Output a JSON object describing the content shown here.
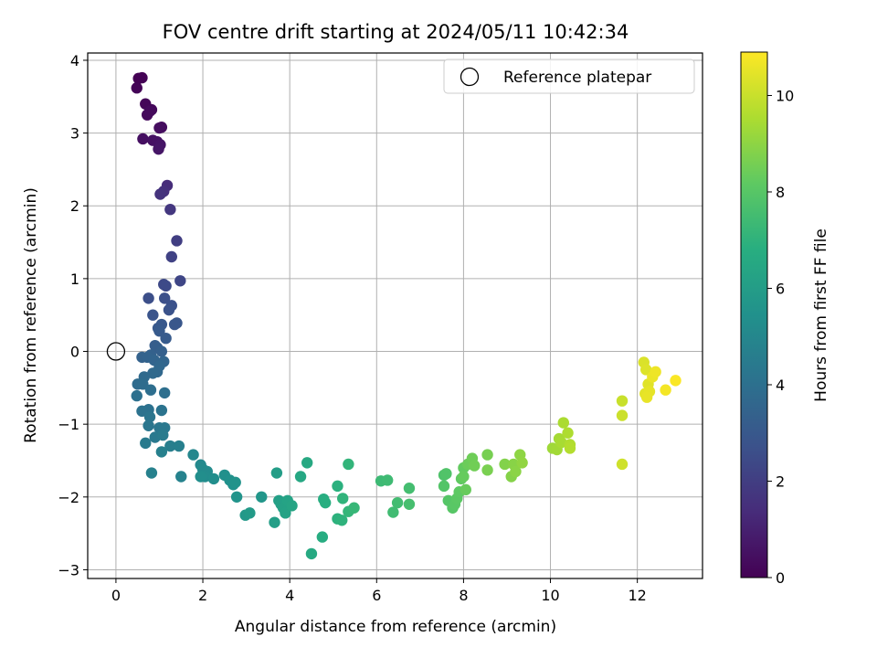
{
  "chart_data": {
    "type": "scatter",
    "title": "FOV centre drift starting at 2024/05/11 10:42:34",
    "xlabel": "Angular distance from reference (arcmin)",
    "ylabel": "Rotation from reference (arcmin)",
    "colorbar_label": "Hours from first FF file",
    "xlim": [
      -0.65,
      13.5
    ],
    "ylim": [
      -3.12,
      4.1
    ],
    "clim": [
      0,
      10.9
    ],
    "colormap": "viridis",
    "grid": true,
    "legend_position": "top-right",
    "xticks": [
      0,
      2,
      4,
      6,
      8,
      10,
      12
    ],
    "yticks": [
      -3,
      -2,
      -1,
      0,
      1,
      2,
      3,
      4
    ],
    "cticks": [
      0,
      2,
      4,
      6,
      8,
      10
    ],
    "reference": {
      "label": "Reference platepar",
      "x": 0,
      "y": 0
    },
    "points": [
      {
        "x": 0.52,
        "y": 3.75,
        "t": 0.0
      },
      {
        "x": 0.6,
        "y": 3.76,
        "t": 0.05
      },
      {
        "x": 0.48,
        "y": 3.62,
        "t": 0.1
      },
      {
        "x": 0.68,
        "y": 3.4,
        "t": 0.15
      },
      {
        "x": 0.82,
        "y": 3.32,
        "t": 0.2
      },
      {
        "x": 0.72,
        "y": 3.25,
        "t": 0.25
      },
      {
        "x": 0.78,
        "y": 3.3,
        "t": 0.3
      },
      {
        "x": 1.05,
        "y": 3.08,
        "t": 0.35
      },
      {
        "x": 1.0,
        "y": 3.07,
        "t": 0.4
      },
      {
        "x": 0.62,
        "y": 2.92,
        "t": 0.45
      },
      {
        "x": 0.85,
        "y": 2.9,
        "t": 0.5
      },
      {
        "x": 0.95,
        "y": 2.88,
        "t": 0.55
      },
      {
        "x": 1.02,
        "y": 2.84,
        "t": 0.6
      },
      {
        "x": 0.98,
        "y": 2.78,
        "t": 0.65
      },
      {
        "x": 1.18,
        "y": 2.28,
        "t": 1.4
      },
      {
        "x": 1.1,
        "y": 2.2,
        "t": 1.5
      },
      {
        "x": 1.02,
        "y": 2.16,
        "t": 1.6
      },
      {
        "x": 1.25,
        "y": 1.95,
        "t": 1.75
      },
      {
        "x": 1.4,
        "y": 1.52,
        "t": 2.0
      },
      {
        "x": 1.28,
        "y": 1.3,
        "t": 2.15
      },
      {
        "x": 1.48,
        "y": 0.97,
        "t": 2.3
      },
      {
        "x": 1.1,
        "y": 0.92,
        "t": 2.4
      },
      {
        "x": 1.15,
        "y": 0.9,
        "t": 2.45
      },
      {
        "x": 0.75,
        "y": 0.73,
        "t": 2.6
      },
      {
        "x": 1.12,
        "y": 0.73,
        "t": 2.65
      },
      {
        "x": 1.28,
        "y": 0.63,
        "t": 2.7
      },
      {
        "x": 1.22,
        "y": 0.57,
        "t": 2.75
      },
      {
        "x": 0.85,
        "y": 0.5,
        "t": 2.8
      },
      {
        "x": 1.4,
        "y": 0.39,
        "t": 2.9
      },
      {
        "x": 1.35,
        "y": 0.37,
        "t": 2.95
      },
      {
        "x": 1.05,
        "y": 0.37,
        "t": 3.0
      },
      {
        "x": 0.97,
        "y": 0.32,
        "t": 3.0
      },
      {
        "x": 1.0,
        "y": 0.28,
        "t": 3.05
      },
      {
        "x": 1.15,
        "y": 0.18,
        "t": 3.1
      },
      {
        "x": 0.9,
        "y": 0.08,
        "t": 3.2
      },
      {
        "x": 0.95,
        "y": 0.05,
        "t": 3.25
      },
      {
        "x": 1.05,
        "y": 0.0,
        "t": 3.3
      },
      {
        "x": 0.8,
        "y": -0.05,
        "t": 3.35
      },
      {
        "x": 0.6,
        "y": -0.08,
        "t": 3.4
      },
      {
        "x": 0.72,
        "y": -0.08,
        "t": 3.45
      },
      {
        "x": 0.88,
        "y": -0.12,
        "t": 3.5
      },
      {
        "x": 1.1,
        "y": -0.14,
        "t": 3.55
      },
      {
        "x": 1.0,
        "y": -0.2,
        "t": 3.6
      },
      {
        "x": 0.95,
        "y": -0.28,
        "t": 3.65
      },
      {
        "x": 0.85,
        "y": -0.3,
        "t": 3.7
      },
      {
        "x": 0.65,
        "y": -0.35,
        "t": 3.75
      },
      {
        "x": 0.5,
        "y": -0.45,
        "t": 3.8
      },
      {
        "x": 0.62,
        "y": -0.45,
        "t": 3.85
      },
      {
        "x": 0.8,
        "y": -0.53,
        "t": 3.9
      },
      {
        "x": 1.12,
        "y": -0.57,
        "t": 3.95
      },
      {
        "x": 0.48,
        "y": -0.61,
        "t": 4.0
      },
      {
        "x": 0.75,
        "y": -0.8,
        "t": 4.05
      },
      {
        "x": 0.6,
        "y": -0.82,
        "t": 4.1
      },
      {
        "x": 1.05,
        "y": -0.81,
        "t": 4.15
      },
      {
        "x": 0.78,
        "y": -0.9,
        "t": 4.2
      },
      {
        "x": 0.75,
        "y": -1.02,
        "t": 4.25
      },
      {
        "x": 1.0,
        "y": -1.05,
        "t": 4.3
      },
      {
        "x": 1.12,
        "y": -1.05,
        "t": 4.35
      },
      {
        "x": 0.9,
        "y": -1.18,
        "t": 4.4
      },
      {
        "x": 0.68,
        "y": -1.26,
        "t": 4.45
      },
      {
        "x": 1.08,
        "y": -1.15,
        "t": 4.5
      },
      {
        "x": 1.25,
        "y": -1.3,
        "t": 4.6
      },
      {
        "x": 1.45,
        "y": -1.3,
        "t": 4.65
      },
      {
        "x": 1.05,
        "y": -1.38,
        "t": 4.7
      },
      {
        "x": 0.82,
        "y": -1.67,
        "t": 4.75
      },
      {
        "x": 1.5,
        "y": -1.72,
        "t": 4.8
      },
      {
        "x": 1.78,
        "y": -1.42,
        "t": 5.0
      },
      {
        "x": 1.95,
        "y": -1.56,
        "t": 5.1
      },
      {
        "x": 2.0,
        "y": -1.62,
        "t": 5.15
      },
      {
        "x": 2.1,
        "y": -1.65,
        "t": 5.2
      },
      {
        "x": 2.05,
        "y": -1.72,
        "t": 5.25
      },
      {
        "x": 2.25,
        "y": -1.75,
        "t": 5.3
      },
      {
        "x": 1.95,
        "y": -1.72,
        "t": 5.3
      },
      {
        "x": 2.5,
        "y": -1.7,
        "t": 5.4
      },
      {
        "x": 2.62,
        "y": -1.77,
        "t": 5.45
      },
      {
        "x": 2.7,
        "y": -1.83,
        "t": 5.5
      },
      {
        "x": 2.75,
        "y": -1.8,
        "t": 5.55
      },
      {
        "x": 2.78,
        "y": -2.0,
        "t": 5.6
      },
      {
        "x": 3.35,
        "y": -2.0,
        "t": 5.7
      },
      {
        "x": 2.98,
        "y": -2.25,
        "t": 5.8
      },
      {
        "x": 3.08,
        "y": -2.22,
        "t": 5.85
      },
      {
        "x": 3.7,
        "y": -1.67,
        "t": 6.0
      },
      {
        "x": 3.65,
        "y": -2.35,
        "t": 6.05
      },
      {
        "x": 3.75,
        "y": -2.05,
        "t": 6.1
      },
      {
        "x": 3.8,
        "y": -2.1,
        "t": 6.15
      },
      {
        "x": 3.85,
        "y": -2.15,
        "t": 6.2
      },
      {
        "x": 3.9,
        "y": -2.22,
        "t": 6.25
      },
      {
        "x": 3.95,
        "y": -2.05,
        "t": 6.3
      },
      {
        "x": 4.05,
        "y": -2.12,
        "t": 6.35
      },
      {
        "x": 4.25,
        "y": -1.72,
        "t": 6.5
      },
      {
        "x": 4.4,
        "y": -1.53,
        "t": 6.55
      },
      {
        "x": 4.5,
        "y": -2.78,
        "t": 6.6
      },
      {
        "x": 4.75,
        "y": -2.55,
        "t": 6.7
      },
      {
        "x": 4.78,
        "y": -2.03,
        "t": 6.75
      },
      {
        "x": 4.82,
        "y": -2.08,
        "t": 6.8
      },
      {
        "x": 5.1,
        "y": -1.85,
        "t": 6.9
      },
      {
        "x": 5.1,
        "y": -2.3,
        "t": 6.95
      },
      {
        "x": 5.2,
        "y": -2.32,
        "t": 7.0
      },
      {
        "x": 5.22,
        "y": -2.02,
        "t": 7.05
      },
      {
        "x": 5.35,
        "y": -1.55,
        "t": 7.1
      },
      {
        "x": 5.35,
        "y": -2.2,
        "t": 7.15
      },
      {
        "x": 5.48,
        "y": -2.15,
        "t": 7.2
      },
      {
        "x": 6.1,
        "y": -1.78,
        "t": 7.35
      },
      {
        "x": 6.25,
        "y": -1.77,
        "t": 7.4
      },
      {
        "x": 6.38,
        "y": -2.21,
        "t": 7.45
      },
      {
        "x": 6.48,
        "y": -2.08,
        "t": 7.5
      },
      {
        "x": 6.75,
        "y": -1.88,
        "t": 7.55
      },
      {
        "x": 6.75,
        "y": -2.1,
        "t": 7.6
      },
      {
        "x": 7.55,
        "y": -1.7,
        "t": 7.8
      },
      {
        "x": 7.6,
        "y": -1.68,
        "t": 7.85
      },
      {
        "x": 7.55,
        "y": -1.85,
        "t": 7.9
      },
      {
        "x": 7.65,
        "y": -2.05,
        "t": 7.95
      },
      {
        "x": 7.75,
        "y": -2.15,
        "t": 8.0
      },
      {
        "x": 7.8,
        "y": -2.1,
        "t": 8.05
      },
      {
        "x": 7.85,
        "y": -2.02,
        "t": 8.1
      },
      {
        "x": 7.9,
        "y": -1.93,
        "t": 8.15
      },
      {
        "x": 7.95,
        "y": -1.75,
        "t": 8.2
      },
      {
        "x": 8.0,
        "y": -1.6,
        "t": 8.25
      },
      {
        "x": 8.0,
        "y": -1.72,
        "t": 8.3
      },
      {
        "x": 8.05,
        "y": -1.9,
        "t": 8.35
      },
      {
        "x": 8.1,
        "y": -1.55,
        "t": 8.4
      },
      {
        "x": 8.2,
        "y": -1.47,
        "t": 8.45
      },
      {
        "x": 8.25,
        "y": -1.57,
        "t": 8.5
      },
      {
        "x": 8.55,
        "y": -1.42,
        "t": 8.6
      },
      {
        "x": 8.55,
        "y": -1.63,
        "t": 8.65
      },
      {
        "x": 8.95,
        "y": -1.55,
        "t": 8.8
      },
      {
        "x": 9.1,
        "y": -1.72,
        "t": 8.85
      },
      {
        "x": 9.15,
        "y": -1.55,
        "t": 8.9
      },
      {
        "x": 9.2,
        "y": -1.65,
        "t": 8.95
      },
      {
        "x": 9.3,
        "y": -1.42,
        "t": 9.0
      },
      {
        "x": 9.35,
        "y": -1.53,
        "t": 9.05
      },
      {
        "x": 10.05,
        "y": -1.33,
        "t": 9.3
      },
      {
        "x": 10.15,
        "y": -1.35,
        "t": 9.35
      },
      {
        "x": 10.2,
        "y": -1.2,
        "t": 9.4
      },
      {
        "x": 10.25,
        "y": -1.25,
        "t": 9.45
      },
      {
        "x": 10.3,
        "y": -0.98,
        "t": 9.5
      },
      {
        "x": 10.4,
        "y": -1.12,
        "t": 9.55
      },
      {
        "x": 10.45,
        "y": -1.28,
        "t": 9.6
      },
      {
        "x": 10.45,
        "y": -1.33,
        "t": 9.65
      },
      {
        "x": 11.65,
        "y": -0.68,
        "t": 10.0
      },
      {
        "x": 11.65,
        "y": -0.88,
        "t": 10.05
      },
      {
        "x": 11.65,
        "y": -1.55,
        "t": 10.1
      },
      {
        "x": 12.15,
        "y": -0.15,
        "t": 10.3
      },
      {
        "x": 12.2,
        "y": -0.25,
        "t": 10.35
      },
      {
        "x": 12.25,
        "y": -0.45,
        "t": 10.4
      },
      {
        "x": 12.18,
        "y": -0.58,
        "t": 10.45
      },
      {
        "x": 12.28,
        "y": -0.55,
        "t": 10.5
      },
      {
        "x": 12.22,
        "y": -0.63,
        "t": 10.55
      },
      {
        "x": 12.35,
        "y": -0.35,
        "t": 10.6
      },
      {
        "x": 12.42,
        "y": -0.28,
        "t": 10.65
      },
      {
        "x": 12.65,
        "y": -0.53,
        "t": 10.75
      },
      {
        "x": 12.88,
        "y": -0.4,
        "t": 10.85
      }
    ]
  }
}
